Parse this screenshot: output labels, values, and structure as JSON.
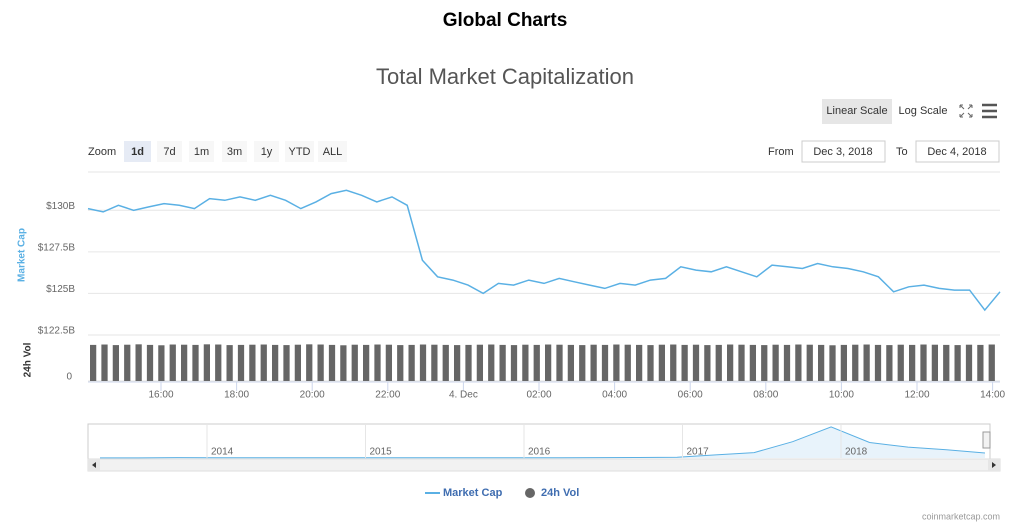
{
  "header": {
    "title": "Global Charts"
  },
  "toolbar": {
    "scales": [
      "Linear Scale",
      "Log Scale"
    ],
    "zoom_label": "Zoom",
    "zoom": [
      "1d",
      "7d",
      "1m",
      "3m",
      "1y",
      "YTD",
      "ALL"
    ],
    "from_label": "From",
    "from": "Dec 3, 2018",
    "to_label": "To",
    "to": "Dec 4, 2018"
  },
  "chart_data": {
    "type": "line",
    "title": "Total Market Capitalization",
    "y_label": "Market Cap",
    "y2_label": "24h Vol",
    "x_axis_labels": [
      "16:00",
      "18:00",
      "20:00",
      "22:00",
      "4. Dec",
      "02:00",
      "04:00",
      "06:00",
      "08:00",
      "10:00",
      "12:00",
      "14:00"
    ],
    "ylim": [
      122.5,
      132.3
    ],
    "yticks": [
      {
        "value": 122.5,
        "label": "$122.5B"
      },
      {
        "value": 125,
        "label": "$125B"
      },
      {
        "value": 127.5,
        "label": "$127.5B"
      },
      {
        "value": 130,
        "label": "$130B"
      }
    ],
    "y2lim": [
      0,
      20
    ],
    "y2ticks": [
      0
    ],
    "grid": true,
    "series": [
      {
        "name": "Market Cap",
        "color": "#5ab0e4",
        "values": [
          130.1,
          129.9,
          130.3,
          130.0,
          130.2,
          130.4,
          130.3,
          130.1,
          130.7,
          130.6,
          130.8,
          130.6,
          130.9,
          130.6,
          130.1,
          130.5,
          131.0,
          131.2,
          130.9,
          130.5,
          130.8,
          130.3,
          127.0,
          126.0,
          125.8,
          125.5,
          125.0,
          125.6,
          125.5,
          125.8,
          125.6,
          125.9,
          125.7,
          125.5,
          125.3,
          125.6,
          125.5,
          125.8,
          125.9,
          126.6,
          126.4,
          126.3,
          126.6,
          126.3,
          126.0,
          126.7,
          126.6,
          126.5,
          126.8,
          126.6,
          126.5,
          126.3,
          126.0,
          125.1,
          125.4,
          125.5,
          125.3,
          125.2,
          125.2,
          124.0,
          125.1
        ]
      },
      {
        "name": "24h Vol",
        "color": "#666666",
        "axis": "y2",
        "values": [
          19.0,
          19.2,
          18.9,
          19.1,
          19.3,
          19.0,
          18.8,
          19.2,
          19.1,
          19.0,
          19.3,
          19.2,
          18.9,
          19.0,
          19.1,
          19.2,
          19.0,
          18.9,
          19.1,
          19.3,
          19.2,
          19.0,
          18.8,
          19.1,
          19.0,
          19.2,
          19.1,
          18.9,
          19.0,
          19.2,
          19.1,
          19.0,
          18.9,
          19.0,
          19.1,
          19.2,
          19.0,
          18.9,
          19.1,
          19.0,
          19.2,
          19.1,
          19.0,
          18.9,
          19.1,
          19.0,
          19.2,
          19.1,
          19.0,
          18.9,
          19.1,
          19.2,
          19.0,
          19.1,
          18.9,
          19.0,
          19.2,
          19.1,
          19.0,
          18.9,
          19.1,
          19.0,
          19.2,
          19.1,
          19.0,
          18.8,
          19.0,
          19.1,
          19.2,
          19.0,
          18.9,
          19.1,
          19.0,
          19.2,
          19.1,
          19.0,
          18.9,
          19.1,
          19.0,
          19.2
        ]
      }
    ],
    "navigator": {
      "labels": [
        "2014",
        "2015",
        "2016",
        "2017",
        "2018"
      ],
      "ylim": [
        0,
        850
      ],
      "values": [
        2,
        2,
        10,
        8,
        7,
        6,
        5,
        4,
        4,
        4,
        5,
        6,
        9,
        10,
        12,
        18,
        80,
        140,
        420,
        800,
        400,
        280,
        210,
        130
      ]
    },
    "legend": "bottom"
  },
  "footer": {
    "credit": "coinmarketcap.com"
  }
}
